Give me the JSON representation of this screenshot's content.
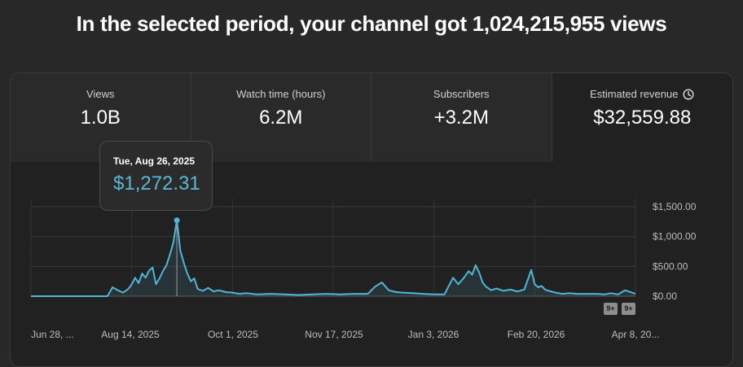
{
  "headline": "In the selected period, your channel got 1,024,215,955 views",
  "metrics": [
    {
      "label": "Views",
      "value": "1.0B"
    },
    {
      "label": "Watch time (hours)",
      "value": "6.2M"
    },
    {
      "label": "Subscribers",
      "value": "+3.2M"
    },
    {
      "label": "Estimated revenue",
      "value": "$32,559.88",
      "icon": "clock-icon"
    }
  ],
  "tooltip": {
    "date": "Tue, Aug 26, 2025",
    "value": "$1,272.31"
  },
  "badges": [
    "9+",
    "9+"
  ],
  "chart_data": {
    "type": "area",
    "y_axis": {
      "ticks": [
        "$1,500.00",
        "$1,000.00",
        "$500.00",
        "$0.00"
      ],
      "tick_values": [
        1500,
        1000,
        500,
        0
      ],
      "ylim": [
        0,
        1500
      ]
    },
    "x_axis": {
      "tick_labels": [
        "Jun 28, ...",
        "Aug 14, 2025",
        "Oct 1, 2025",
        "Nov 17, 2025",
        "Jan 3, 2026",
        "Feb 20, 2026",
        "Apr 8, 20..."
      ]
    },
    "grid": true,
    "series": [
      {
        "color": "#4fb6d8",
        "x_days_from_start": [
          0,
          44,
          47,
          50,
          53,
          56,
          58,
          60,
          62,
          64,
          66,
          68,
          70,
          72,
          74,
          76,
          78,
          80,
          82,
          84,
          86,
          88,
          90,
          92,
          94,
          96,
          99,
          102,
          105,
          108,
          112,
          116,
          120,
          124,
          130,
          138,
          146,
          154,
          162,
          170,
          178,
          186,
          194,
          198,
          202,
          206,
          210,
          214,
          220,
          226,
          232,
          238,
          243,
          246,
          249,
          252,
          254,
          256,
          258,
          260,
          262,
          265,
          268,
          272,
          276,
          280,
          284,
          288,
          290,
          292,
          294,
          296,
          298,
          302,
          306,
          310,
          314,
          318,
          322,
          326,
          330,
          334,
          338,
          342,
          346,
          348
        ],
        "values": [
          0,
          0,
          150,
          100,
          60,
          120,
          200,
          310,
          220,
          380,
          310,
          430,
          480,
          200,
          300,
          420,
          520,
          700,
          900,
          1272,
          760,
          560,
          380,
          250,
          300,
          120,
          90,
          140,
          80,
          100,
          70,
          60,
          40,
          50,
          30,
          40,
          30,
          20,
          30,
          40,
          30,
          40,
          40,
          160,
          230,
          100,
          70,
          60,
          50,
          40,
          30,
          30,
          310,
          200,
          300,
          420,
          360,
          520,
          400,
          230,
          160,
          100,
          130,
          90,
          110,
          80,
          110,
          440,
          200,
          150,
          170,
          110,
          90,
          60,
          40,
          50,
          40,
          40,
          40,
          40,
          30,
          50,
          30,
          100,
          60,
          40
        ]
      }
    ]
  }
}
